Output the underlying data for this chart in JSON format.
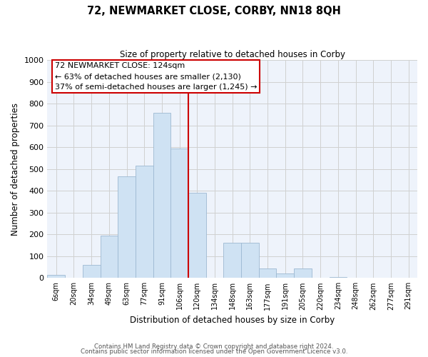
{
  "title": "72, NEWMARKET CLOSE, CORBY, NN18 8QH",
  "subtitle": "Size of property relative to detached houses in Corby",
  "xlabel": "Distribution of detached houses by size in Corby",
  "ylabel": "Number of detached properties",
  "bin_labels": [
    "6sqm",
    "20sqm",
    "34sqm",
    "49sqm",
    "63sqm",
    "77sqm",
    "91sqm",
    "106sqm",
    "120sqm",
    "134sqm",
    "148sqm",
    "163sqm",
    "177sqm",
    "191sqm",
    "205sqm",
    "220sqm",
    "234sqm",
    "248sqm",
    "262sqm",
    "277sqm",
    "291sqm"
  ],
  "bar_heights": [
    15,
    0,
    60,
    193,
    468,
    517,
    757,
    595,
    390,
    0,
    160,
    160,
    42,
    20,
    45,
    0,
    5,
    0,
    0,
    0,
    0
  ],
  "bar_color": "#cfe2f3",
  "bar_edge_color": "#9db8d2",
  "vline_label_idx": 8,
  "vline_color": "#cc0000",
  "annotation_title": "72 NEWMARKET CLOSE: 124sqm",
  "annotation_line1": "← 63% of detached houses are smaller (2,130)",
  "annotation_line2": "37% of semi-detached houses are larger (1,245) →",
  "annotation_box_color": "#ffffff",
  "annotation_box_edge": "#cc0000",
  "ylim": [
    0,
    1000
  ],
  "yticks": [
    0,
    100,
    200,
    300,
    400,
    500,
    600,
    700,
    800,
    900,
    1000
  ],
  "footer1": "Contains HM Land Registry data © Crown copyright and database right 2024.",
  "footer2": "Contains public sector information licensed under the Open Government Licence v3.0.",
  "bg_color": "#ffffff",
  "grid_color": "#d0d0d0"
}
